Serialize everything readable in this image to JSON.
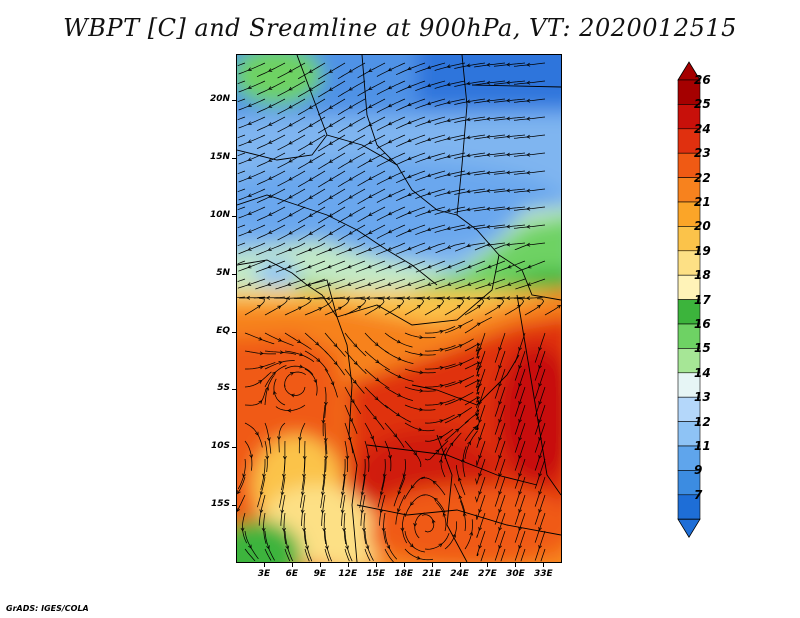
{
  "title": "WBPT [C] and Sreamline at 900hPa, VT: 2020012515",
  "credit": "GrADS: IGES/COLA",
  "map": {
    "lon_range": [
      0,
      35
    ],
    "lat_range": [
      -20,
      24
    ],
    "lat_ticks": [
      {
        "value": 20,
        "label": "20N"
      },
      {
        "value": 15,
        "label": "15N"
      },
      {
        "value": 10,
        "label": "10N"
      },
      {
        "value": 5,
        "label": "5N"
      },
      {
        "value": 0,
        "label": "EQ"
      },
      {
        "value": -5,
        "label": "5S"
      },
      {
        "value": -10,
        "label": "10S"
      },
      {
        "value": -15,
        "label": "15S"
      }
    ],
    "lon_ticks": [
      {
        "value": 3,
        "label": "3E"
      },
      {
        "value": 6,
        "label": "6E"
      },
      {
        "value": 9,
        "label": "9E"
      },
      {
        "value": 12,
        "label": "12E"
      },
      {
        "value": 15,
        "label": "15E"
      },
      {
        "value": 18,
        "label": "18E"
      },
      {
        "value": 21,
        "label": "21E"
      },
      {
        "value": 24,
        "label": "24E"
      },
      {
        "value": 27,
        "label": "27E"
      },
      {
        "value": 30,
        "label": "30E"
      },
      {
        "value": 33,
        "label": "33E"
      }
    ]
  },
  "colorbar": {
    "labels": [
      "26",
      "25",
      "24",
      "23",
      "22",
      "21",
      "20",
      "19",
      "18",
      "17",
      "16",
      "15",
      "14",
      "13",
      "12",
      "11",
      "9",
      "7"
    ],
    "colors": [
      "#a50000",
      "#c8100a",
      "#e0300f",
      "#f05a14",
      "#f7821e",
      "#fba528",
      "#fbc34a",
      "#fde085",
      "#fff3b8",
      "#3cb43c",
      "#6ed264",
      "#a6e696",
      "#e6f5f5",
      "#b4d7fa",
      "#8ec3f5",
      "#5fa5ec",
      "#3c8ce1",
      "#1e6ed7"
    ],
    "top_arrow_color": "#a50000",
    "bottom_arrow_color": "#1e6ed7"
  }
}
